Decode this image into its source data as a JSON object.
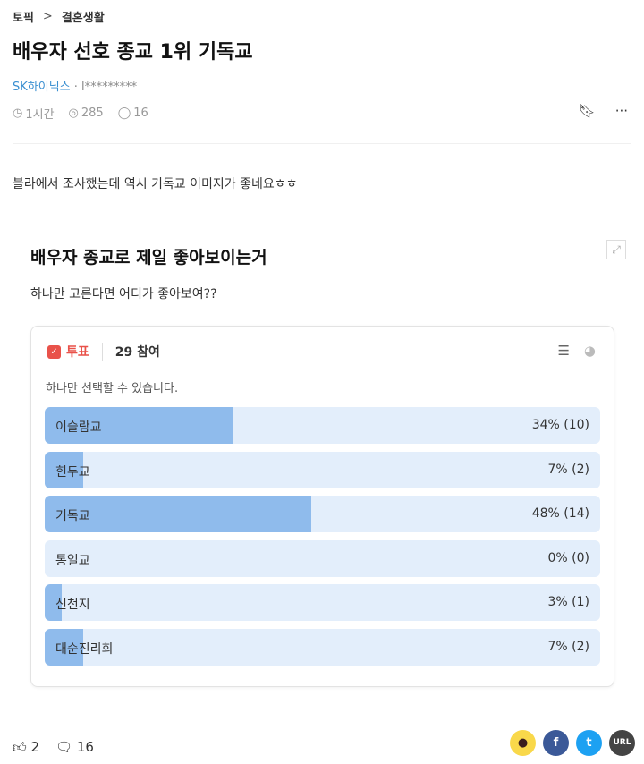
{
  "breadcrumb": {
    "root": "토픽",
    "child": "결혼생활"
  },
  "post": {
    "title": "배우자 선호 종교 1위 기독교",
    "company": "SK하이닉스",
    "author": "· l*********",
    "time": "1시간",
    "views": "285",
    "comments": "16",
    "body": "블라에서 조사했는데 역시 기독교 이미지가 좋네요ㅎㅎ"
  },
  "poll": {
    "title": "배우자 종교로 제일 좋아보이는거",
    "subtitle": "하나만 고른다면 어디가 좋아보여??",
    "label": "투표",
    "participants": "29 참여",
    "note": "하나만 선택할 수 있습니다.",
    "options": [
      {
        "label": "이슬람교",
        "percent": 34,
        "display": "34% (10)"
      },
      {
        "label": "힌두교",
        "percent": 7,
        "display": "7% (2)"
      },
      {
        "label": "기독교",
        "percent": 48,
        "display": "48% (14)"
      },
      {
        "label": "통일교",
        "percent": 0,
        "display": "0% (0)"
      },
      {
        "label": "신천지",
        "percent": 3,
        "display": "3% (1)"
      },
      {
        "label": "대순진리회",
        "percent": 7,
        "display": "7% (2)"
      }
    ],
    "fill_color": "#8fbbec",
    "track_color": "#e3eefb",
    "accent": "#e9524a"
  },
  "footer": {
    "likes": "2",
    "comments": "16",
    "share": {
      "url_label": "URL",
      "kakao": "#f9d84a",
      "facebook": "#3b5998",
      "twitter": "#1da1f2",
      "url": "#444444"
    }
  }
}
